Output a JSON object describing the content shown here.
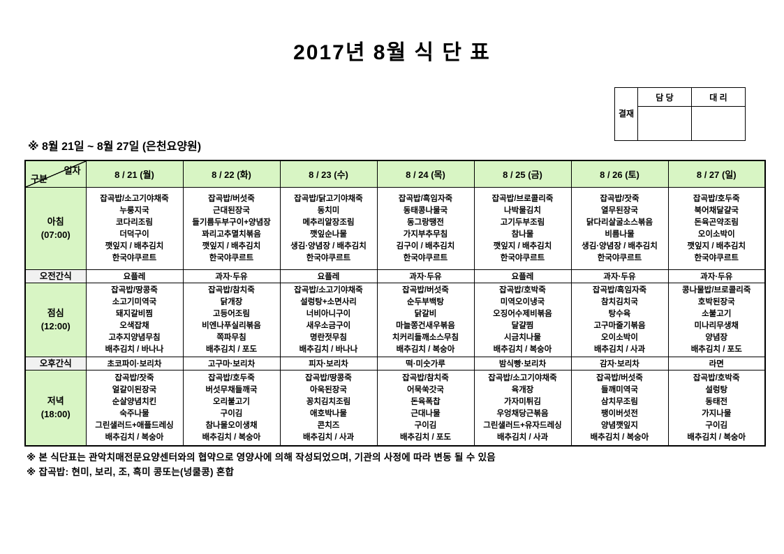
{
  "title": "2017년 8월 식 단 표",
  "subtitle": "※ 8월 21일 ~ 8월 27일 (은천요양원)",
  "approval": {
    "stamp_label": "결재",
    "columns": [
      "담 당",
      "대 리"
    ]
  },
  "table": {
    "corner": {
      "top": "일자",
      "bottom": "구분"
    },
    "days": [
      "8 / 21 (월)",
      "8 / 22 (화)",
      "8 / 23 (수)",
      "8 / 24 (목)",
      "8 / 25 (금)",
      "8 / 26 (토)",
      "8 / 27 (일)"
    ],
    "rows": [
      {
        "id": "breakfast",
        "label": "아침",
        "time": "(07:00)",
        "kind": "meal",
        "cells": [
          [
            "잡곡밥/소고기야채죽",
            "누룽지국",
            "코다리조림",
            "더덕구이",
            "깻잎지 / 배추김치",
            "한국야쿠르트"
          ],
          [
            "잡곡밥/버섯죽",
            "근대된장국",
            "들기름두부구이+양념장",
            "꽈리고추멸치볶음",
            "깻잎지 / 배추김치",
            "한국야쿠르트"
          ],
          [
            "잡곡밥/닭고기야채죽",
            "동치미",
            "메추리알장조림",
            "깻잎순나물",
            "생김·양념장 / 배추김치",
            "한국야쿠르트"
          ],
          [
            "잡곡밥/흑임자죽",
            "동태콩나물국",
            "동그랑땡전",
            "가지부추무침",
            "김구이 / 배추김치",
            "한국야쿠르트"
          ],
          [
            "잡곡밥/브로콜리죽",
            "나박물김치",
            "고기두부조림",
            "참나물",
            "깻잎지 / 배추김치",
            "한국야쿠르트"
          ],
          [
            "잡곡밥/잣죽",
            "열무된장국",
            "닭다리살굴소스볶음",
            "비름나물",
            "생김·양념장 / 배추김치",
            "한국야쿠르트"
          ],
          [
            "잡곡밥/호두죽",
            "북어채달걀국",
            "돈육곤약조림",
            "오이소박이",
            "깻잎지 / 배추김치",
            "한국야쿠르트"
          ]
        ]
      },
      {
        "id": "am-snack",
        "label": "오전간식",
        "kind": "snack",
        "cells": [
          "요플레",
          "과자·두유",
          "요플레",
          "과자·두유",
          "요플레",
          "과자·두유",
          "과자·두유"
        ]
      },
      {
        "id": "lunch",
        "label": "점심",
        "time": "(12:00)",
        "kind": "meal",
        "cells": [
          [
            "잡곡밥/땅콩죽",
            "소고기미역국",
            "돼지갈비찜",
            "오색잡채",
            "고추지양념무침",
            "배추김치 / 바나나"
          ],
          [
            "잡곡밥/참치죽",
            "닭개장",
            "고등어조림",
            "비엔나푸실리볶음",
            "쪽파무침",
            "배추김치 / 포도"
          ],
          [
            "잡곡밥/소고기야채죽",
            "설렁탕+소면사리",
            "너비아니구이",
            "새우소금구이",
            "명란젓무침",
            "배추김치 / 바나나"
          ],
          [
            "잡곡밥/버섯죽",
            "순두부백탕",
            "닭갈비",
            "마늘쫑건새우볶음",
            "치커리들깨소스무침",
            "배추김치 / 복숭아"
          ],
          [
            "잡곡밥/호박죽",
            "미역오이냉국",
            "오징어수제비볶음",
            "달걀찜",
            "시금치나물",
            "배추김치 / 복숭아"
          ],
          [
            "잡곡밥/흑임자죽",
            "참치김치국",
            "탕수육",
            "고구마줄기볶음",
            "오이소박이",
            "배추김치 / 사과"
          ],
          [
            "콩나물밥/브로콜리죽",
            "호박된장국",
            "소불고기",
            "미나리무생채",
            "양념장",
            "배추김치 / 포도"
          ]
        ]
      },
      {
        "id": "pm-snack",
        "label": "오후간식",
        "kind": "snack",
        "cells": [
          "초코파이·보리차",
          "고구마·보리차",
          "피자·보리차",
          "떡·미숫가루",
          "밤식빵·보리차",
          "감자·보리차",
          "라면"
        ]
      },
      {
        "id": "dinner",
        "label": "저녁",
        "time": "(18:00)",
        "kind": "meal",
        "cells": [
          [
            "잡곡밥/잣죽",
            "얼갈이된장국",
            "순살양념치킨",
            "숙주나물",
            "그린샐러드+애플드레싱",
            "배추김치 / 복숭아"
          ],
          [
            "잡곡밥/호두죽",
            "버섯무채들깨국",
            "오리불고기",
            "구이김",
            "참나물오이생채",
            "배추김치 / 복숭아"
          ],
          [
            "잡곡밥/땅콩죽",
            "아욱된장국",
            "꽁치김치조림",
            "애호박나물",
            "콘치즈",
            "배추김치 / 사과"
          ],
          [
            "잡곡밥/참치죽",
            "어묵쑥갓국",
            "돈육폭찹",
            "근대나물",
            "구이김",
            "배추김치 / 포도"
          ],
          [
            "잡곡밥/소고기야채죽",
            "육개장",
            "가자미튀김",
            "우엉채당근볶음",
            "그린샐러드+유자드레싱",
            "배추김치 / 사과"
          ],
          [
            "잡곡밥/버섯죽",
            "들깨미역국",
            "삼치무조림",
            "팽이버섯전",
            "양념깻잎지",
            "배추김치 / 복숭아"
          ],
          [
            "잡곡밥/호박죽",
            "설렁탕",
            "동태전",
            "가지나물",
            "구이김",
            "배추김치 / 복숭아"
          ]
        ]
      }
    ]
  },
  "footnotes": [
    "※ 본 식단표는 관악치매전문요양센터와의 협약으로 영양사에 의해 작성되었으며, 기관의 사정에 따라 변동 될 수 있음",
    "※ 잡곡밥: 현미, 보리, 조, 흑미 콩또는(넝쿨콩) 혼합"
  ],
  "colors": {
    "header_green": "#d8f5c4",
    "snack_label_bg": "#f1f1f1",
    "border": "#000000"
  }
}
